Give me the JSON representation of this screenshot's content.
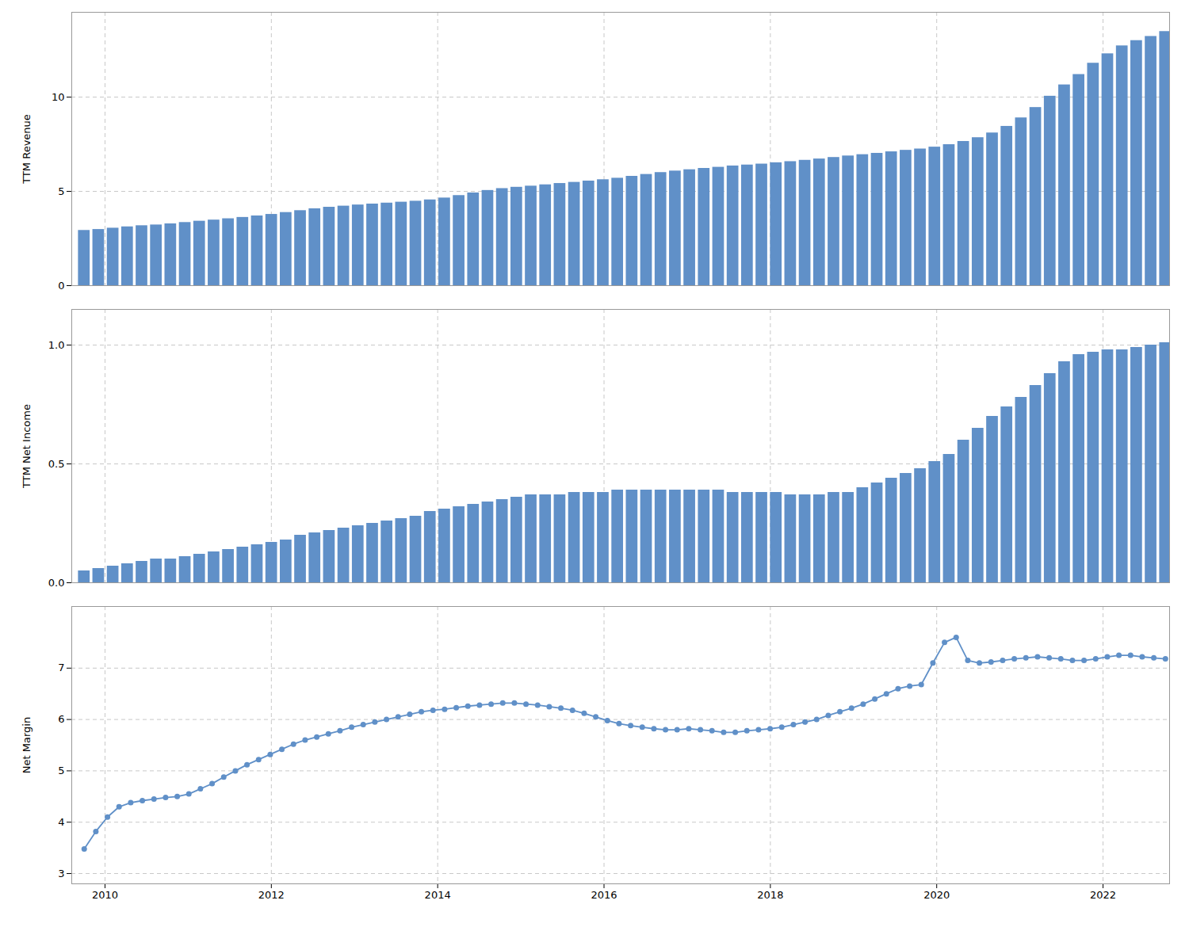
{
  "chart_data": [
    {
      "type": "bar",
      "ylabel": "TTM Revenue",
      "x": [
        2009.75,
        2009.923333,
        2010.096667,
        2010.27,
        2010.443333,
        2010.616667,
        2010.79,
        2010.963333,
        2011.136667,
        2011.31,
        2011.483333,
        2011.656667,
        2011.83,
        2012.003333,
        2012.176667,
        2012.35,
        2012.523333,
        2012.696667,
        2012.87,
        2013.043333,
        2013.216667,
        2013.39,
        2013.563333,
        2013.736667,
        2013.91,
        2014.083333,
        2014.256667,
        2014.43,
        2014.603333,
        2014.776667,
        2014.95,
        2015.123333,
        2015.296667,
        2015.47,
        2015.643333,
        2015.816667,
        2015.99,
        2016.163333,
        2016.336667,
        2016.51,
        2016.683333,
        2016.856667,
        2017.03,
        2017.203333,
        2017.376667,
        2017.55,
        2017.723333,
        2017.896667,
        2018.07,
        2018.243333,
        2018.416667,
        2018.59,
        2018.763333,
        2018.936667,
        2019.11,
        2019.283333,
        2019.456667,
        2019.63,
        2019.803333,
        2019.976667,
        2020.15,
        2020.323333,
        2020.496667,
        2020.67,
        2020.843333,
        2021.016667,
        2021.19,
        2021.363333,
        2021.536667,
        2021.71,
        2021.883333,
        2022.056667,
        2022.23,
        2022.403333,
        2022.576667,
        2022.75
      ],
      "values": [
        2.93,
        2.98,
        3.05,
        3.12,
        3.18,
        3.22,
        3.28,
        3.35,
        3.42,
        3.48,
        3.55,
        3.62,
        3.7,
        3.78,
        3.88,
        3.98,
        4.08,
        4.16,
        4.22,
        4.28,
        4.33,
        4.38,
        4.43,
        4.48,
        4.55,
        4.65,
        4.78,
        4.92,
        5.05,
        5.15,
        5.22,
        5.28,
        5.35,
        5.42,
        5.48,
        5.55,
        5.62,
        5.7,
        5.8,
        5.9,
        6.0,
        6.08,
        6.15,
        6.22,
        6.28,
        6.35,
        6.4,
        6.45,
        6.52,
        6.58,
        6.65,
        6.72,
        6.8,
        6.88,
        6.95,
        7.02,
        7.1,
        7.18,
        7.25,
        7.35,
        7.48,
        7.65,
        7.85,
        8.1,
        8.45,
        8.9,
        9.45,
        10.05,
        10.65,
        11.2,
        11.8,
        12.3,
        12.72,
        13.0,
        13.22,
        13.48
      ],
      "color": "#6090c8",
      "xlim": [
        2009.6,
        2022.8
      ],
      "xticks": [
        2010,
        2012,
        2014,
        2016,
        2018,
        2020,
        2022
      ],
      "ylim": [
        0,
        14.5
      ],
      "yticks": [
        0,
        5,
        10
      ],
      "grid": true,
      "tick_labels": "y"
    },
    {
      "type": "bar",
      "ylabel": "TTM Net Income",
      "x": [
        2009.75,
        2009.923333,
        2010.096667,
        2010.27,
        2010.443333,
        2010.616667,
        2010.79,
        2010.963333,
        2011.136667,
        2011.31,
        2011.483333,
        2011.656667,
        2011.83,
        2012.003333,
        2012.176667,
        2012.35,
        2012.523333,
        2012.696667,
        2012.87,
        2013.043333,
        2013.216667,
        2013.39,
        2013.563333,
        2013.736667,
        2013.91,
        2014.083333,
        2014.256667,
        2014.43,
        2014.603333,
        2014.776667,
        2014.95,
        2015.123333,
        2015.296667,
        2015.47,
        2015.643333,
        2015.816667,
        2015.99,
        2016.163333,
        2016.336667,
        2016.51,
        2016.683333,
        2016.856667,
        2017.03,
        2017.203333,
        2017.376667,
        2017.55,
        2017.723333,
        2017.896667,
        2018.07,
        2018.243333,
        2018.416667,
        2018.59,
        2018.763333,
        2018.936667,
        2019.11,
        2019.283333,
        2019.456667,
        2019.63,
        2019.803333,
        2019.976667,
        2020.15,
        2020.323333,
        2020.496667,
        2020.67,
        2020.843333,
        2021.016667,
        2021.19,
        2021.363333,
        2021.536667,
        2021.71,
        2021.883333,
        2022.056667,
        2022.23,
        2022.403333,
        2022.576667,
        2022.75
      ],
      "values": [
        0.05,
        0.06,
        0.07,
        0.08,
        0.09,
        0.1,
        0.1,
        0.11,
        0.12,
        0.13,
        0.14,
        0.15,
        0.16,
        0.17,
        0.18,
        0.2,
        0.21,
        0.22,
        0.23,
        0.24,
        0.25,
        0.26,
        0.27,
        0.28,
        0.3,
        0.31,
        0.32,
        0.33,
        0.34,
        0.35,
        0.36,
        0.37,
        0.37,
        0.37,
        0.38,
        0.38,
        0.38,
        0.39,
        0.39,
        0.39,
        0.39,
        0.39,
        0.39,
        0.39,
        0.39,
        0.38,
        0.38,
        0.38,
        0.38,
        0.37,
        0.37,
        0.37,
        0.38,
        0.38,
        0.4,
        0.42,
        0.44,
        0.46,
        0.48,
        0.51,
        0.54,
        0.6,
        0.65,
        0.7,
        0.74,
        0.78,
        0.83,
        0.88,
        0.93,
        0.96,
        0.97,
        0.98,
        0.98,
        0.99,
        1.0,
        1.01
      ],
      "color": "#6090c8",
      "xlim": [
        2009.6,
        2022.8
      ],
      "xticks": [
        2010,
        2012,
        2014,
        2016,
        2018,
        2020,
        2022
      ],
      "ylim": [
        0,
        1.15
      ],
      "yticks": [
        {
          "value": 0,
          "label": "0.0"
        },
        {
          "value": 0.5,
          "label": "0.5"
        },
        {
          "value": 1,
          "label": "1.0"
        }
      ],
      "grid": true,
      "tick_labels": "y"
    },
    {
      "type": "line",
      "ylabel": "Net Margin",
      "x": [
        2009.75,
        2009.889785,
        2010.02957,
        2010.169355,
        2010.30914,
        2010.448925,
        2010.58871,
        2010.728495,
        2010.86828,
        2011.008065,
        2011.147849,
        2011.287634,
        2011.427419,
        2011.567204,
        2011.706989,
        2011.846774,
        2011.986559,
        2012.126344,
        2012.266129,
        2012.405914,
        2012.545699,
        2012.685484,
        2012.825269,
        2012.965054,
        2013.104839,
        2013.244624,
        2013.384409,
        2013.524194,
        2013.663978,
        2013.803763,
        2013.943548,
        2014.083333,
        2014.223118,
        2014.362903,
        2014.502688,
        2014.642473,
        2014.782258,
        2014.922043,
        2015.061828,
        2015.201613,
        2015.341398,
        2015.481183,
        2015.620968,
        2015.760753,
        2015.900538,
        2016.040323,
        2016.180108,
        2016.319892,
        2016.459677,
        2016.599462,
        2016.739247,
        2016.879032,
        2017.018817,
        2017.158602,
        2017.298387,
        2017.438172,
        2017.577957,
        2017.717742,
        2017.857527,
        2017.997312,
        2018.137097,
        2018.276882,
        2018.416667,
        2018.556452,
        2018.696237,
        2018.836022,
        2018.975806,
        2019.115591,
        2019.255376,
        2019.395161,
        2019.534946,
        2019.674731,
        2019.814516,
        2019.954301,
        2020.094086,
        2020.233871,
        2020.373656,
        2020.513441,
        2020.653226,
        2020.793011,
        2020.932796,
        2021.072581,
        2021.212366,
        2021.352151,
        2021.491935,
        2021.63172,
        2021.771505,
        2021.91129,
        2022.051075,
        2022.19086,
        2022.330645,
        2022.47043,
        2022.610215,
        2022.75
      ],
      "values": [
        3.48,
        3.82,
        4.1,
        4.3,
        4.38,
        4.42,
        4.45,
        4.48,
        4.5,
        4.55,
        4.65,
        4.75,
        4.88,
        5.0,
        5.12,
        5.22,
        5.32,
        5.42,
        5.52,
        5.6,
        5.66,
        5.72,
        5.78,
        5.85,
        5.9,
        5.95,
        6.0,
        6.05,
        6.1,
        6.15,
        6.18,
        6.2,
        6.23,
        6.26,
        6.28,
        6.3,
        6.32,
        6.32,
        6.3,
        6.28,
        6.25,
        6.22,
        6.18,
        6.12,
        6.05,
        5.98,
        5.92,
        5.88,
        5.85,
        5.82,
        5.8,
        5.8,
        5.82,
        5.8,
        5.78,
        5.75,
        5.75,
        5.78,
        5.8,
        5.82,
        5.85,
        5.9,
        5.95,
        6.0,
        6.08,
        6.15,
        6.22,
        6.3,
        6.4,
        6.5,
        6.6,
        6.65,
        6.68,
        7.1,
        7.5,
        7.6,
        7.15,
        7.1,
        7.12,
        7.15,
        7.18,
        7.2,
        7.22,
        7.2,
        7.18,
        7.15,
        7.15,
        7.18,
        7.22,
        7.25,
        7.25,
        7.22,
        7.2,
        7.18
      ],
      "color": "#6090c8",
      "marker": "circle",
      "xlim": [
        2009.6,
        2022.8
      ],
      "xticks": [
        2010,
        2012,
        2014,
        2016,
        2018,
        2020,
        2022
      ],
      "ylim": [
        2.8,
        8.2
      ],
      "yticks": [
        3,
        4,
        5,
        6,
        7
      ],
      "grid": true
    }
  ]
}
